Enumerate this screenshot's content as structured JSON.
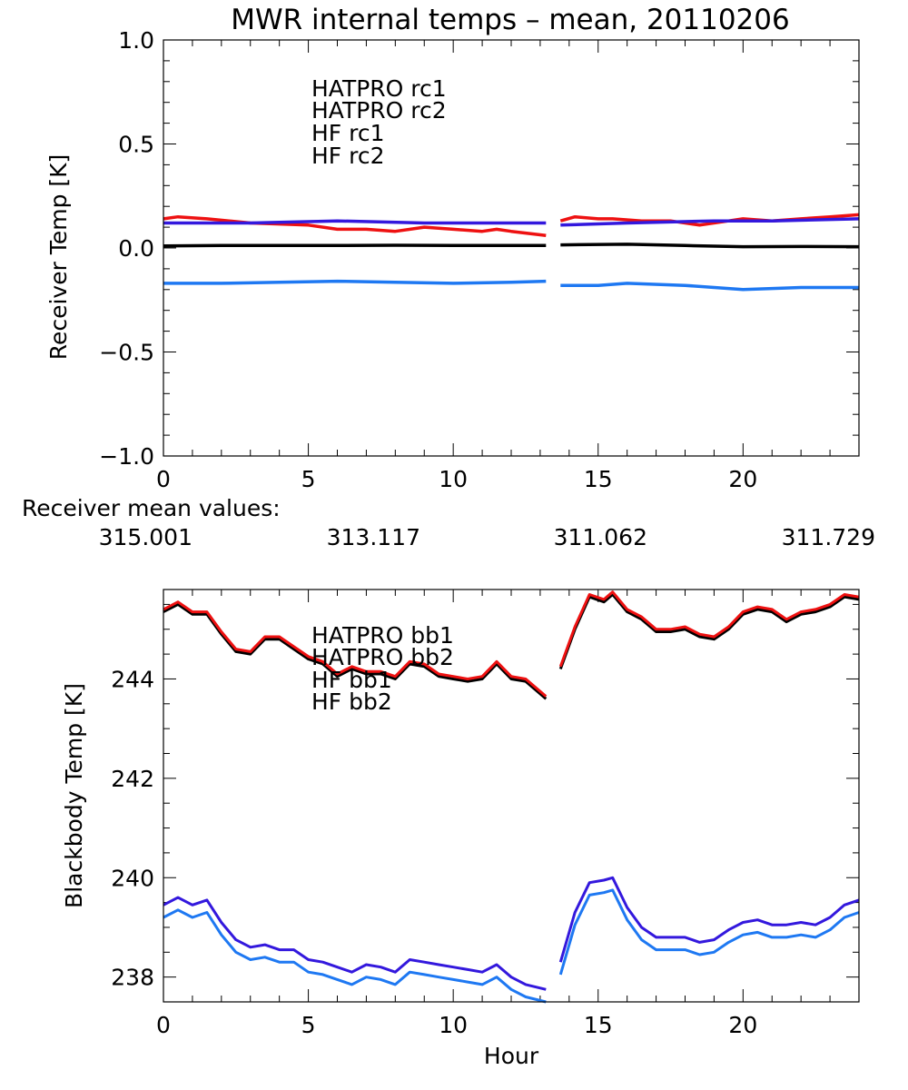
{
  "colors": {
    "hatpro1": "#000000",
    "hatpro2": "#ee1111",
    "hf1": "#3318dd",
    "hf2": "#1e78f2"
  },
  "receiver_mean": {
    "label": "Receiver mean values:",
    "values": [
      "315.001",
      "313.117",
      "311.062",
      "311.729"
    ]
  },
  "chart_data": [
    {
      "type": "line",
      "title": "MWR internal temps – mean, 20110206",
      "xlabel": "",
      "ylabel": "Receiver Temp [K]",
      "xlim": [
        0,
        24
      ],
      "ylim": [
        -1.0,
        1.0
      ],
      "xticks": [
        0,
        5,
        10,
        15,
        20
      ],
      "xtick_labels": [
        "0",
        "5",
        "10",
        "15",
        "20"
      ],
      "yticks": [
        -1.0,
        -0.5,
        0.0,
        0.5,
        1.0
      ],
      "ytick_labels": [
        "−1.0",
        "−0.5",
        "0.0",
        "0.5",
        "1.0"
      ],
      "gap": [
        13.2,
        13.7
      ],
      "legend": [
        "HATPRO rc1",
        "HATPRO rc2",
        "HF rc1",
        "HF rc2"
      ],
      "series": [
        {
          "name": "HATPRO rc1",
          "color_key": "hatpro1",
          "x": [
            0,
            2,
            4,
            6,
            8,
            10,
            12,
            13.2,
            13.7,
            16,
            18,
            20,
            22,
            24
          ],
          "y": [
            0.01,
            0.012,
            0.012,
            0.012,
            0.013,
            0.012,
            0.012,
            0.012,
            0.015,
            0.018,
            0.012,
            0.006,
            0.007,
            0.006
          ]
        },
        {
          "name": "HATPRO rc2",
          "color_key": "hatpro2",
          "x": [
            0,
            0.5,
            1.5,
            3,
            5,
            6,
            7,
            8,
            9,
            10,
            11,
            11.5,
            12,
            13.2,
            13.7,
            14.2,
            15,
            15.5,
            16.5,
            17.5,
            18.5,
            19.5,
            20,
            21,
            22,
            23,
            24
          ],
          "y": [
            0.14,
            0.15,
            0.14,
            0.12,
            0.11,
            0.09,
            0.09,
            0.08,
            0.1,
            0.09,
            0.08,
            0.09,
            0.08,
            0.06,
            0.13,
            0.15,
            0.14,
            0.14,
            0.13,
            0.13,
            0.11,
            0.13,
            0.14,
            0.13,
            0.14,
            0.15,
            0.16
          ]
        },
        {
          "name": "HF rc1",
          "color_key": "hf1",
          "x": [
            0,
            3,
            6,
            9,
            12,
            13.2,
            13.7,
            16,
            19,
            21,
            24
          ],
          "y": [
            0.12,
            0.12,
            0.13,
            0.12,
            0.12,
            0.12,
            0.11,
            0.12,
            0.13,
            0.13,
            0.14
          ]
        },
        {
          "name": "HF rc2",
          "color_key": "hf2",
          "x": [
            0,
            2,
            4,
            6,
            8,
            10,
            12,
            13.2,
            13.7,
            15,
            16,
            18,
            20,
            22,
            24
          ],
          "y": [
            -0.17,
            -0.17,
            -0.165,
            -0.16,
            -0.165,
            -0.17,
            -0.165,
            -0.16,
            -0.18,
            -0.18,
            -0.17,
            -0.18,
            -0.2,
            -0.19,
            -0.19
          ]
        }
      ]
    },
    {
      "type": "line",
      "title": "",
      "xlabel": "Hour",
      "ylabel": "Blackbody Temp [K]",
      "xlim": [
        0,
        24
      ],
      "ylim": [
        237.5,
        245.8
      ],
      "xticks": [
        0,
        5,
        10,
        15,
        20
      ],
      "xtick_labels": [
        "0",
        "5",
        "10",
        "15",
        "20"
      ],
      "yticks": [
        238,
        240,
        242,
        244
      ],
      "ytick_labels": [
        "238",
        "240",
        "242",
        "244"
      ],
      "gap": [
        13.2,
        13.7
      ],
      "legend": [
        "HATPRO bb1",
        "HATPRO bb2",
        "HF bb1",
        "HF bb2"
      ],
      "series": [
        {
          "name": "HATPRO bb1",
          "color_key": "hatpro1",
          "x": [
            0,
            0.5,
            1,
            1.5,
            2,
            2.5,
            3,
            3.5,
            4,
            4.5,
            5,
            5.5,
            6,
            6.5,
            7,
            7.5,
            8,
            8.5,
            9,
            9.5,
            10,
            10.5,
            11,
            11.5,
            12,
            12.5,
            13.2,
            13.7,
            14.2,
            14.7,
            15.2,
            15.5,
            16,
            16.5,
            17,
            17.5,
            18,
            18.5,
            19,
            19.5,
            20,
            20.5,
            21,
            21.5,
            22,
            22.5,
            23,
            23.5,
            24
          ],
          "y": [
            245.35,
            245.5,
            245.3,
            245.3,
            244.9,
            244.55,
            244.5,
            244.8,
            244.8,
            244.6,
            244.4,
            244.3,
            244.05,
            244.2,
            244.1,
            244.1,
            244.0,
            244.3,
            244.25,
            244.05,
            244.0,
            243.95,
            244.0,
            244.3,
            244.0,
            243.95,
            243.6,
            244.2,
            245.0,
            245.65,
            245.55,
            245.7,
            245.35,
            245.2,
            244.95,
            244.95,
            245.0,
            244.85,
            244.8,
            245.0,
            245.3,
            245.4,
            245.35,
            245.15,
            245.3,
            245.35,
            245.45,
            245.65,
            245.6
          ]
        },
        {
          "name": "HATPRO bb2",
          "color_key": "hatpro2",
          "x": [
            0,
            0.5,
            1,
            1.5,
            2,
            2.5,
            3,
            3.5,
            4,
            4.5,
            5,
            5.5,
            6,
            6.5,
            7,
            7.5,
            8,
            8.5,
            9,
            9.5,
            10,
            10.5,
            11,
            11.5,
            12,
            12.5,
            13.2,
            13.7,
            14.2,
            14.7,
            15.2,
            15.5,
            16,
            16.5,
            17,
            17.5,
            18,
            18.5,
            19,
            19.5,
            20,
            20.5,
            21,
            21.5,
            22,
            22.5,
            23,
            23.5,
            24
          ],
          "y": [
            245.4,
            245.55,
            245.35,
            245.35,
            244.95,
            244.6,
            244.55,
            244.85,
            244.85,
            244.65,
            244.45,
            244.35,
            244.1,
            244.25,
            244.15,
            244.15,
            244.05,
            244.35,
            244.3,
            244.1,
            244.05,
            244.0,
            244.05,
            244.35,
            244.05,
            244.0,
            243.65,
            244.25,
            245.05,
            245.7,
            245.6,
            245.75,
            245.4,
            245.25,
            245.0,
            245.0,
            245.05,
            244.9,
            244.85,
            245.05,
            245.35,
            245.45,
            245.4,
            245.2,
            245.35,
            245.4,
            245.5,
            245.7,
            245.65
          ]
        },
        {
          "name": "HF bb1",
          "color_key": "hf1",
          "x": [
            0,
            0.5,
            1,
            1.5,
            2,
            2.5,
            3,
            3.5,
            4,
            4.5,
            5,
            5.5,
            6,
            6.5,
            7,
            7.5,
            8,
            8.5,
            9,
            9.5,
            10,
            10.5,
            11,
            11.5,
            12,
            12.5,
            13.2,
            13.7,
            14.2,
            14.7,
            15.2,
            15.5,
            16,
            16.5,
            17,
            17.5,
            18,
            18.5,
            19,
            19.5,
            20,
            20.5,
            21,
            21.5,
            22,
            22.5,
            23,
            23.5,
            24
          ],
          "y": [
            239.45,
            239.6,
            239.45,
            239.55,
            239.1,
            238.75,
            238.6,
            238.65,
            238.55,
            238.55,
            238.35,
            238.3,
            238.2,
            238.1,
            238.25,
            238.2,
            238.1,
            238.35,
            238.3,
            238.25,
            238.2,
            238.15,
            238.1,
            238.25,
            238.0,
            237.85,
            237.75,
            238.3,
            239.3,
            239.9,
            239.95,
            240.0,
            239.4,
            239.0,
            238.8,
            238.8,
            238.8,
            238.7,
            238.75,
            238.95,
            239.1,
            239.15,
            239.05,
            239.05,
            239.1,
            239.05,
            239.2,
            239.45,
            239.55
          ]
        },
        {
          "name": "HF bb2",
          "color_key": "hf2",
          "x": [
            0,
            0.5,
            1,
            1.5,
            2,
            2.5,
            3,
            3.5,
            4,
            4.5,
            5,
            5.5,
            6,
            6.5,
            7,
            7.5,
            8,
            8.5,
            9,
            9.5,
            10,
            10.5,
            11,
            11.5,
            12,
            12.5,
            13.2,
            13.7,
            14.2,
            14.7,
            15.2,
            15.5,
            16,
            16.5,
            17,
            17.5,
            18,
            18.5,
            19,
            19.5,
            20,
            20.5,
            21,
            21.5,
            22,
            22.5,
            23,
            23.5,
            24
          ],
          "y": [
            239.2,
            239.35,
            239.2,
            239.3,
            238.85,
            238.5,
            238.35,
            238.4,
            238.3,
            238.3,
            238.1,
            238.05,
            237.95,
            237.85,
            238.0,
            237.95,
            237.85,
            238.1,
            238.05,
            238.0,
            237.95,
            237.9,
            237.85,
            238.0,
            237.75,
            237.6,
            237.5,
            238.05,
            239.05,
            239.65,
            239.7,
            239.75,
            239.15,
            238.75,
            238.55,
            238.55,
            238.55,
            238.45,
            238.5,
            238.7,
            238.85,
            238.9,
            238.8,
            238.8,
            238.85,
            238.8,
            238.95,
            239.2,
            239.3
          ]
        }
      ]
    }
  ]
}
